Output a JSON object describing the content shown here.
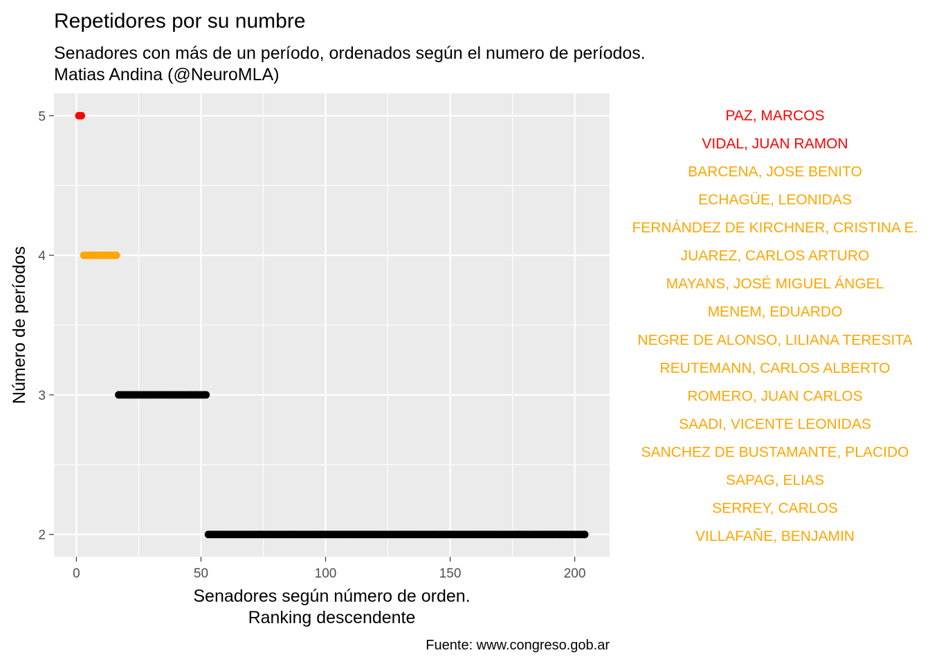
{
  "chart_data": {
    "type": "scatter",
    "title": "Repetidores por su numbre",
    "subtitle": [
      "Senadores con más de un período, ordenados según el numero de períodos.",
      "Matias Andina (@NeuroMLA)"
    ],
    "xlabel": [
      "Senadores según número de orden.",
      "Ranking descendente"
    ],
    "ylabel": "Número de períodos",
    "caption": "Fuente: www.congreso.gob.ar",
    "xlim": [
      -9,
      214
    ],
    "ylim": [
      1.84,
      5.16
    ],
    "xticks": [
      0,
      50,
      100,
      150,
      200
    ],
    "xtick_labels": [
      "0",
      "50",
      "100",
      "150",
      "200"
    ],
    "yticks": [
      2,
      3,
      4,
      5
    ],
    "ytick_labels": [
      "2",
      "3",
      "4",
      "5"
    ],
    "grid": true,
    "colors": {
      "panel_bg": "#ebebeb",
      "grid_major": "#ffffff",
      "tick_text": "#4d4d4d",
      "five_terms": "#ff0000",
      "four_terms": "#ffa500",
      "fewer_terms": "#000000"
    },
    "series": [
      {
        "periods": 5,
        "x_start": 1,
        "x_end": 2,
        "color": "#ff0000"
      },
      {
        "periods": 4,
        "x_start": 3,
        "x_end": 16,
        "color": "#ffa500"
      },
      {
        "periods": 3,
        "x_start": 17,
        "x_end": 52,
        "color": "#000000"
      },
      {
        "periods": 2,
        "x_start": 53,
        "x_end": 204,
        "color": "#000000"
      }
    ],
    "annotations": [
      {
        "label": "PAZ, MARCOS",
        "color": "#ff0000"
      },
      {
        "label": "VIDAL,  JUAN RAMON",
        "color": "#ff0000"
      },
      {
        "label": "BARCENA,  JOSE BENITO",
        "color": "#ffa500"
      },
      {
        "label": "ECHAGÜE,  LEONIDAS",
        "color": "#ffa500"
      },
      {
        "label": "FERNÁNDEZ DE KIRCHNER, CRISTINA E.",
        "color": "#ffa500"
      },
      {
        "label": "JUAREZ, CARLOS ARTURO",
        "color": "#ffa500"
      },
      {
        "label": "MAYANS, JOSÉ MIGUEL ÁNGEL",
        "color": "#ffa500"
      },
      {
        "label": "MENEM, EDUARDO",
        "color": "#ffa500"
      },
      {
        "label": "NEGRE DE ALONSO, LILIANA TERESITA",
        "color": "#ffa500"
      },
      {
        "label": "REUTEMANN, CARLOS ALBERTO",
        "color": "#ffa500"
      },
      {
        "label": "ROMERO, JUAN CARLOS",
        "color": "#ffa500"
      },
      {
        "label": "SAADI, VICENTE LEONIDAS",
        "color": "#ffa500"
      },
      {
        "label": "SANCHEZ DE BUSTAMANTE,  PLACIDO",
        "color": "#ffa500"
      },
      {
        "label": "SAPAG, ELIAS",
        "color": "#ffa500"
      },
      {
        "label": "SERREY,  CARLOS",
        "color": "#ffa500"
      },
      {
        "label": "VILLAFAÑE, BENJAMIN",
        "color": "#ffa500"
      }
    ]
  }
}
